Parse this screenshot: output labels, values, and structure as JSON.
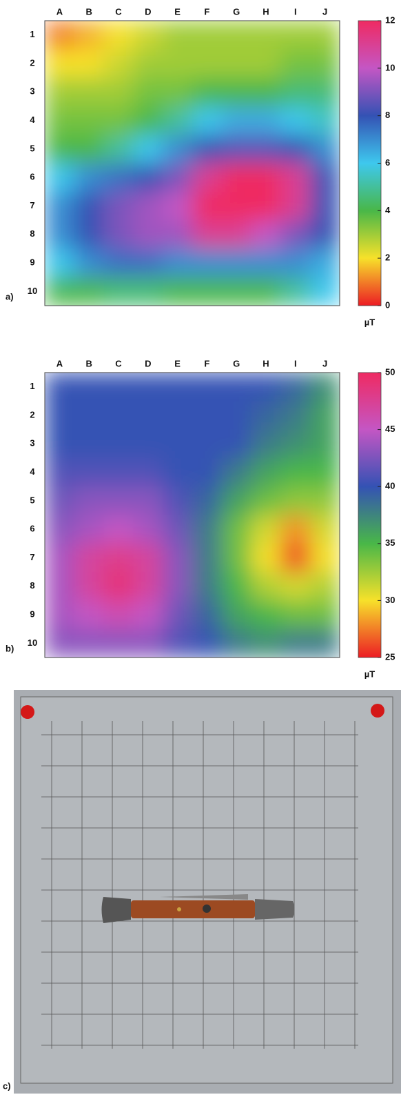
{
  "chart_data": [
    {
      "type": "heatmap",
      "label": "a)",
      "unit": "µT",
      "columns": [
        "A",
        "B",
        "C",
        "D",
        "E",
        "F",
        "G",
        "H",
        "I",
        "J"
      ],
      "rows": [
        "1",
        "2",
        "3",
        "4",
        "5",
        "6",
        "7",
        "8",
        "9",
        "10"
      ],
      "values": [
        [
          1,
          1.5,
          2,
          2.5,
          3,
          3,
          3,
          3,
          3,
          3
        ],
        [
          2,
          2,
          2.5,
          3,
          3,
          3,
          3,
          3,
          3.5,
          3.5
        ],
        [
          3,
          3,
          3,
          3.5,
          3.5,
          4,
          4,
          4,
          4.5,
          4.5
        ],
        [
          3.5,
          3.5,
          3.5,
          4,
          5,
          6,
          6.5,
          6.5,
          6,
          5.5
        ],
        [
          4,
          4,
          5,
          6,
          7,
          8,
          8.5,
          8.5,
          8,
          7
        ],
        [
          6,
          7,
          7.5,
          8,
          9,
          11,
          12,
          12,
          11,
          8
        ],
        [
          7,
          8,
          9,
          9.5,
          10,
          12,
          12,
          12,
          11,
          8
        ],
        [
          7,
          8,
          9,
          9.5,
          9.5,
          11,
          11,
          10,
          9,
          8
        ],
        [
          6,
          7,
          7.5,
          7.5,
          7,
          7,
          7,
          7,
          7,
          6.5
        ],
        [
          4,
          4,
          4.5,
          4.5,
          4,
          4,
          4,
          4,
          5,
          6
        ]
      ],
      "zlim": [
        0,
        12
      ],
      "zticks": [
        0,
        2,
        4,
        6,
        8,
        10,
        12
      ],
      "colormap": [
        "#ec1c24",
        "#f7e12a",
        "#49b748",
        "#3ec8ee",
        "#3452b4",
        "#c456c4",
        "#ef2a62"
      ]
    },
    {
      "type": "heatmap",
      "label": "b)",
      "unit": "µT",
      "columns": [
        "A",
        "B",
        "C",
        "D",
        "E",
        "F",
        "G",
        "H",
        "I",
        "J"
      ],
      "rows": [
        "1",
        "2",
        "3",
        "4",
        "5",
        "6",
        "7",
        "8",
        "9",
        "10"
      ],
      "values": [
        [
          40,
          40,
          40,
          40,
          40,
          40,
          40,
          40,
          39,
          37
        ],
        [
          40,
          40,
          40,
          40,
          40,
          40,
          40,
          39,
          38,
          36
        ],
        [
          40,
          40,
          40,
          40,
          40,
          40,
          40,
          38,
          37,
          36
        ],
        [
          41,
          41,
          41,
          41,
          40,
          40,
          38,
          36,
          35,
          35
        ],
        [
          42,
          43,
          43,
          43,
          41,
          39,
          36,
          34,
          33,
          33
        ],
        [
          43,
          44,
          45,
          44,
          42,
          38,
          34,
          31,
          28,
          31
        ],
        [
          44,
          47,
          48,
          47,
          43,
          38,
          34,
          30,
          26,
          30
        ],
        [
          44,
          47,
          49,
          47,
          43,
          38,
          35,
          32,
          31,
          32
        ],
        [
          44,
          45,
          46,
          45,
          42,
          39,
          36,
          35,
          34,
          34
        ],
        [
          43,
          43,
          43,
          43,
          41,
          40,
          38,
          37,
          38,
          38
        ]
      ],
      "zlim": [
        25,
        50
      ],
      "zticks": [
        25,
        30,
        35,
        40,
        45,
        50
      ],
      "colormap": [
        "#ec1c24",
        "#f7e12a",
        "#49b748",
        "#3452b4",
        "#c456c4",
        "#ef2a62"
      ]
    }
  ],
  "photo": {
    "label": "c)"
  }
}
